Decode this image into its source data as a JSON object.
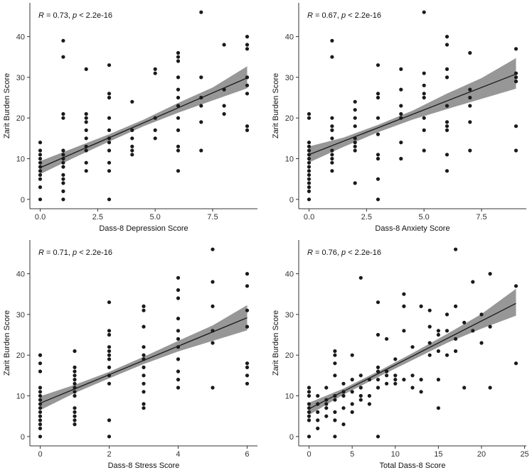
{
  "colors": {
    "point": "#1a1a1a",
    "band": "#8c8c8c",
    "line": "#1a1a1a",
    "axis": "#333333"
  },
  "chart_data": [
    {
      "type": "scatter",
      "annotation": {
        "r_label": "R",
        "r_text": " = 0.73, ",
        "p_label": "p",
        "p_text": " < 2.2e-16"
      },
      "xlabel": "Dass-8 Depression Score",
      "ylabel": "Zarit Burden Score",
      "xlim": [
        -0.45,
        9.45
      ],
      "ylim": [
        -2.3,
        48.3
      ],
      "xticks": [
        0,
        2.5,
        5,
        7.5
      ],
      "xtick_labels": [
        "0.0",
        "2.5",
        "5.0",
        "7.5"
      ],
      "yticks": [
        0,
        10,
        20,
        30,
        40
      ],
      "ytick_labels": [
        "0",
        "10",
        "20",
        "30",
        "40"
      ],
      "fit": {
        "intercept": 7.8,
        "slope": 2.45,
        "ci_x": [
          0,
          1.5,
          3,
          4.5,
          6,
          7.5,
          9
        ],
        "ci_lower": [
          6.2,
          10.3,
          14.2,
          18.0,
          21.3,
          24.3,
          27.3
        ],
        "ci_upper": [
          9.4,
          12.7,
          16.0,
          19.6,
          23.7,
          27.5,
          32.7
        ]
      },
      "points": {
        "x": [
          0,
          0,
          0,
          0,
          0,
          0,
          0,
          0,
          0,
          0,
          0,
          1,
          1,
          1,
          1,
          1,
          1,
          1,
          1,
          1,
          1,
          1,
          1,
          1,
          1,
          2,
          2,
          2,
          2,
          2,
          2,
          2,
          2,
          2,
          2,
          3,
          3,
          3,
          3,
          3,
          3,
          3,
          3,
          3,
          3,
          3,
          4,
          4,
          4,
          4,
          4,
          4,
          5,
          5,
          5,
          5,
          5,
          6,
          6,
          6,
          6,
          6,
          6,
          6,
          6,
          6,
          6,
          6,
          6,
          7,
          7,
          7,
          7,
          7,
          7,
          8,
          8,
          8,
          8,
          9,
          9,
          9,
          9,
          9,
          9,
          9,
          9
        ],
        "y": [
          0,
          3,
          5,
          6,
          7,
          8,
          9,
          10,
          11,
          12,
          14,
          0,
          2,
          4,
          5,
          6,
          8,
          9,
          10,
          11,
          12,
          20,
          21,
          35,
          39,
          7,
          9,
          12,
          13,
          15,
          17,
          19,
          20,
          21,
          32,
          0,
          7,
          9,
          12,
          14,
          15,
          17,
          20,
          25,
          26,
          33,
          11,
          12,
          13,
          15,
          17,
          24,
          15,
          17,
          20,
          31,
          32,
          7,
          12,
          13,
          17,
          20,
          23,
          25,
          27,
          30,
          34,
          35,
          36,
          12,
          19,
          23,
          25,
          30,
          46,
          21,
          23,
          27,
          38,
          17,
          18,
          26,
          28,
          30,
          37,
          38,
          40
        ]
      }
    },
    {
      "type": "scatter",
      "annotation": {
        "r_label": "R",
        "r_text": " = 0.67, ",
        "p_label": "p",
        "p_text": " < 2.2e-16"
      },
      "xlabel": "Dass-8 Anxiety Score",
      "ylabel": "Zarit Burden Score",
      "xlim": [
        -0.45,
        9.45
      ],
      "ylim": [
        -2.3,
        48.3
      ],
      "xticks": [
        0,
        2.5,
        5,
        7.5
      ],
      "xtick_labels": [
        "0.0",
        "2.5",
        "5.0",
        "7.5"
      ],
      "yticks": [
        0,
        10,
        20,
        30,
        40
      ],
      "ytick_labels": [
        "0",
        "10",
        "20",
        "30",
        "40"
      ],
      "fit": {
        "intercept": 11.0,
        "slope": 2.2,
        "ci_x": [
          0,
          1.5,
          3,
          4.5,
          6,
          7.5,
          9
        ],
        "ci_lower": [
          9.1,
          12.9,
          16.5,
          19.6,
          22.2,
          24.7,
          27.2
        ],
        "ci_upper": [
          13.0,
          15.2,
          18.3,
          21.8,
          26.0,
          29.8,
          34.7
        ]
      },
      "points": {
        "x": [
          0,
          0,
          0,
          0,
          0,
          0,
          0,
          0,
          0,
          0,
          0,
          0,
          0,
          0,
          0,
          0,
          1,
          1,
          1,
          1,
          1,
          1,
          1,
          1,
          1,
          1,
          1,
          2,
          2,
          2,
          2,
          2,
          2,
          2,
          2,
          2,
          3,
          3,
          3,
          3,
          3,
          3,
          3,
          3,
          3,
          4,
          4,
          4,
          4,
          4,
          4,
          4,
          5,
          5,
          5,
          5,
          5,
          5,
          5,
          5,
          6,
          6,
          6,
          6,
          6,
          6,
          6,
          6,
          6,
          6,
          7,
          7,
          7,
          7,
          7,
          7,
          9,
          9,
          9,
          9,
          9,
          9
        ],
        "y": [
          0,
          2,
          3,
          4,
          5,
          6,
          7,
          8,
          9,
          10,
          11,
          12,
          13,
          14,
          20,
          21,
          7,
          9,
          10,
          11,
          12,
          15,
          17,
          18,
          20,
          35,
          39,
          4,
          12,
          13,
          14,
          15,
          18,
          20,
          22,
          24,
          0,
          5,
          10,
          11,
          16,
          20,
          25,
          26,
          33,
          10,
          14,
          20,
          21,
          23,
          27,
          32,
          12,
          17,
          20,
          25,
          26,
          28,
          31,
          46,
          7,
          11,
          17,
          18,
          19,
          23,
          30,
          32,
          38,
          40,
          12,
          19,
          23,
          25,
          27,
          36,
          12,
          18,
          29,
          30,
          31,
          37
        ]
      }
    },
    {
      "type": "scatter",
      "annotation": {
        "r_label": "R",
        "r_text": " = 0.71, ",
        "p_label": "p",
        "p_text": " < 2.2e-16"
      },
      "xlabel": "Dass-8 Stress Score",
      "ylabel": "Zarit Burden Score",
      "xlim": [
        -0.3,
        6.3
      ],
      "ylim": [
        -2.3,
        48.3
      ],
      "xticks": [
        0,
        2,
        4,
        6
      ],
      "xtick_labels": [
        "0",
        "2",
        "4",
        "6"
      ],
      "yticks": [
        0,
        10,
        20,
        30,
        40
      ],
      "ytick_labels": [
        "0",
        "10",
        "20",
        "30",
        "40"
      ],
      "fit": {
        "intercept": 8.2,
        "slope": 3.5,
        "ci_x": [
          0,
          1,
          2,
          3,
          4,
          5,
          6
        ],
        "ci_lower": [
          6.5,
          10.7,
          14.3,
          17.8,
          20.9,
          23.5,
          26.1
        ],
        "ci_upper": [
          9.9,
          12.7,
          15.9,
          19.6,
          23.5,
          27.3,
          32.3
        ]
      },
      "points": {
        "x": [
          0,
          0,
          0,
          0,
          0,
          0,
          0,
          0,
          0,
          0,
          0,
          0,
          0,
          0,
          0,
          0,
          1,
          1,
          1,
          1,
          1,
          1,
          1,
          1,
          1,
          1,
          1,
          1,
          1,
          1,
          2,
          2,
          2,
          2,
          2,
          2,
          2,
          2,
          2,
          2,
          2,
          2,
          3,
          3,
          3,
          3,
          3,
          3,
          3,
          3,
          3,
          3,
          3,
          3,
          4,
          4,
          4,
          4,
          4,
          4,
          4,
          4,
          4,
          4,
          4,
          5,
          5,
          5,
          5,
          5,
          5,
          6,
          6,
          6,
          6,
          6,
          6,
          6,
          6
        ],
        "y": [
          0,
          2,
          3,
          4,
          5,
          6,
          7,
          8,
          9,
          10,
          11,
          12,
          16,
          18,
          20,
          20,
          3,
          4,
          5,
          6,
          7,
          10,
          11,
          12,
          13,
          14,
          15,
          16,
          17,
          21,
          0,
          4,
          13,
          15,
          17,
          19,
          20,
          21,
          22,
          25,
          26,
          33,
          7,
          8,
          11,
          13,
          15,
          17,
          19,
          20,
          22,
          27,
          31,
          32,
          12,
          14,
          16,
          19,
          22,
          24,
          26,
          29,
          34,
          36,
          39,
          12,
          23,
          26,
          32,
          38,
          46,
          13,
          15,
          17,
          18,
          27,
          31,
          37,
          40
        ]
      }
    },
    {
      "type": "scatter",
      "annotation": {
        "r_label": "R",
        "r_text": " = 0.76, ",
        "p_label": "p",
        "p_text": " < 2.2e-16"
      },
      "xlabel": "Total Dass-8 Score",
      "ylabel": "Zarit Burden Score",
      "xlim": [
        -1.2,
        25.2
      ],
      "ylim": [
        -2.3,
        48.3
      ],
      "xticks": [
        0,
        5,
        10,
        15,
        20,
        25
      ],
      "xtick_labels": [
        "0",
        "5",
        "10",
        "15",
        "20",
        "25"
      ],
      "yticks": [
        0,
        10,
        20,
        30,
        40
      ],
      "ytick_labels": [
        "0",
        "10",
        "20",
        "30",
        "40"
      ],
      "fit": {
        "intercept": 6.8,
        "slope": 1.08,
        "ci_x": [
          0,
          4,
          8,
          12,
          16,
          20,
          24
        ],
        "ci_lower": [
          5.3,
          10.3,
          14.6,
          18.8,
          23.0,
          26.5,
          29.7
        ],
        "ci_upper": [
          8.3,
          11.8,
          16.0,
          20.5,
          25.2,
          30.1,
          36.3
        ]
      },
      "points": {
        "x": [
          0,
          0,
          0,
          0,
          0,
          0,
          0,
          0,
          0,
          1,
          1,
          1,
          1,
          1,
          2,
          2,
          2,
          2,
          2,
          3,
          3,
          3,
          3,
          3,
          3,
          3,
          3,
          3,
          4,
          4,
          4,
          4,
          4,
          5,
          5,
          5,
          5,
          5,
          6,
          6,
          6,
          6,
          6,
          7,
          7,
          7,
          8,
          8,
          8,
          8,
          8,
          8,
          8,
          9,
          9,
          9,
          9,
          10,
          10,
          10,
          10,
          11,
          11,
          11,
          11,
          12,
          12,
          12,
          13,
          13,
          13,
          14,
          14,
          14,
          14,
          15,
          15,
          15,
          15,
          15,
          16,
          16,
          16,
          17,
          17,
          17,
          17,
          18,
          18,
          19,
          19,
          20,
          20,
          21,
          21,
          21,
          24,
          24
        ],
        "y": [
          0,
          4,
          5,
          6,
          7,
          8,
          10,
          11,
          12,
          2,
          4,
          6,
          8,
          10,
          5,
          7,
          8,
          9,
          12,
          0,
          4,
          6,
          9,
          10,
          15,
          18,
          20,
          21,
          3,
          7,
          10,
          11,
          13,
          6,
          8,
          11,
          14,
          20,
          9,
          10,
          12,
          15,
          39,
          8,
          10,
          14,
          0,
          12,
          14,
          16,
          17,
          25,
          33,
          13,
          15,
          16,
          24,
          13,
          14,
          15,
          19,
          14,
          26,
          32,
          35,
          12,
          15,
          22,
          11,
          14,
          32,
          20,
          23,
          27,
          31,
          7,
          14,
          21,
          25,
          26,
          20,
          26,
          30,
          21,
          24,
          32,
          46,
          12,
          28,
          26,
          38,
          23,
          30,
          12,
          27,
          40,
          18,
          37
        ]
      }
    }
  ]
}
